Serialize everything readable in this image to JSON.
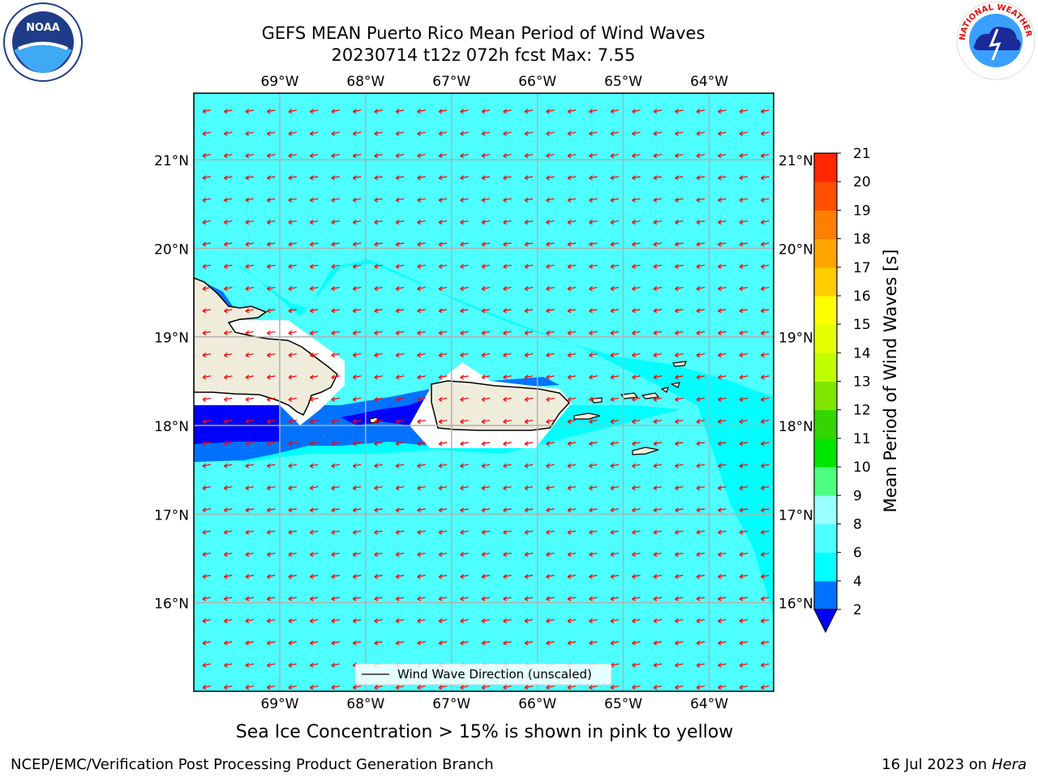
{
  "title_line1": "GEFS MEAN Puerto Rico Mean Period of Wind Waves",
  "title_line2": "20230714 t12z 072h fcst   Max: 7.55",
  "map": {
    "lon_ticks": [
      "69°W",
      "68°W",
      "67°W",
      "66°W",
      "65°W",
      "64°W"
    ],
    "lon_values": [
      -69,
      -68,
      -67,
      -66,
      -65,
      -64
    ],
    "lat_ticks": [
      "21°N",
      "20°N",
      "19°N",
      "18°N",
      "17°N",
      "16°N"
    ],
    "lat_values": [
      21,
      20,
      19,
      18,
      17,
      16
    ],
    "lon_range": [
      -70.0,
      -63.25
    ],
    "lat_range": [
      15.0,
      21.75
    ],
    "background_color": "#4dffff",
    "land_color": "#efecdc",
    "arrow_color": "#ff0000",
    "legend_label": "Wind Wave Direction (unscaled)"
  },
  "colorbar": {
    "label": "Mean Period of Wind Waves [s]",
    "ticks": [
      "2",
      "4",
      "6",
      "8",
      "9",
      "10",
      "11",
      "12",
      "13",
      "14",
      "15",
      "16",
      "17",
      "18",
      "19",
      "20",
      "21"
    ],
    "colors": [
      "#0072ff",
      "#00ffff",
      "#4dffff",
      "#99ffff",
      "#4dff80",
      "#00e600",
      "#33d600",
      "#80e600",
      "#bfff00",
      "#e6ff00",
      "#ffff00",
      "#ffcc00",
      "#ffa500",
      "#ff8000",
      "#ff5000",
      "#ff2600",
      "#ff0000"
    ],
    "under_color": "#0000ff"
  },
  "note": "Sea Ice Concentration > 15% is shown in pink to yellow",
  "footer_left": "NCEP/EMC/Verification Post Processing Product Generation Branch",
  "footer_right_date": "16 Jul 2023 on ",
  "footer_right_host": "Hera",
  "logos": {
    "left": "noaa-logo",
    "right": "nws-logo"
  }
}
